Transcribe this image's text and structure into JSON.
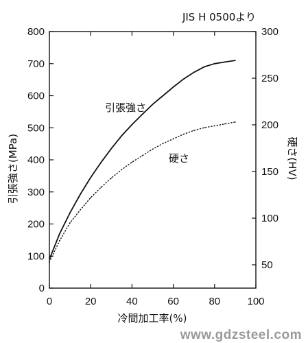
{
  "chart_data": {
    "type": "line",
    "source_note": "JIS H 0500より",
    "xlabel": "冷間加工率(%)",
    "ylabel_left": "引張強さ(MPa)",
    "ylabel_right": "硬さ(HV)",
    "xlim": [
      0,
      100
    ],
    "ylim_left": [
      0,
      800
    ],
    "ylim_right": [
      25,
      300
    ],
    "x_ticks": [
      "0",
      "20",
      "40",
      "60",
      "80",
      "100"
    ],
    "y_left_ticks": [
      "0",
      "100",
      "200",
      "300",
      "400",
      "500",
      "600",
      "700",
      "800"
    ],
    "y_right_ticks": [
      "50",
      "100",
      "150",
      "200",
      "250",
      "300"
    ],
    "grid": false,
    "series": [
      {
        "name": "引張強さ",
        "axis": "left",
        "style": "solid",
        "x": [
          0,
          5,
          10,
          15,
          20,
          25,
          30,
          35,
          40,
          45,
          50,
          55,
          60,
          65,
          70,
          75,
          80,
          85,
          90
        ],
        "y": [
          90,
          170,
          235,
          293,
          345,
          392,
          435,
          475,
          510,
          542,
          573,
          600,
          627,
          652,
          673,
          690,
          700,
          705,
          710
        ]
      },
      {
        "name": "硬さ",
        "axis": "right",
        "style": "dotted",
        "x": [
          0,
          5,
          10,
          15,
          20,
          25,
          30,
          35,
          40,
          45,
          50,
          55,
          60,
          65,
          70,
          75,
          80,
          85,
          90
        ],
        "y": [
          53,
          76,
          95,
          109,
          122,
          133,
          143,
          152,
          160,
          167,
          174,
          180,
          185,
          190,
          194,
          197,
          199,
          201,
          203
        ]
      }
    ]
  },
  "watermark": "www.gdzsteel.com",
  "colors": {
    "line": "#111111",
    "watermark": "#9a9a9a"
  }
}
